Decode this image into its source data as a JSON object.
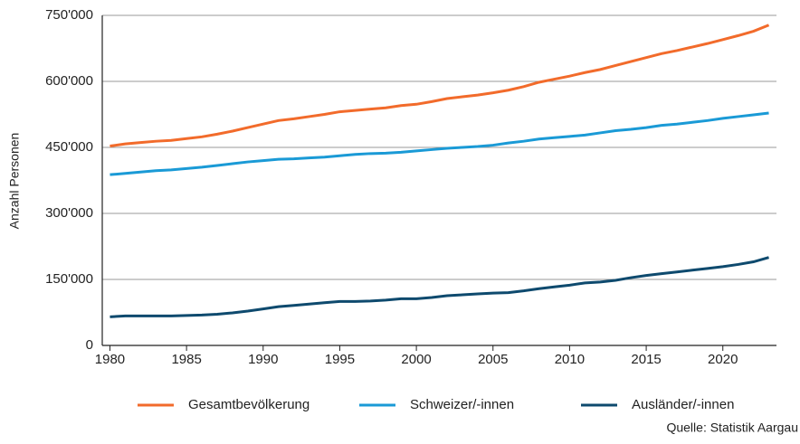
{
  "chart_data": {
    "type": "line",
    "y_label": "Anzahl Personen",
    "source": "Quelle: Statistik Aargau",
    "x": [
      1980,
      1981,
      1982,
      1983,
      1984,
      1985,
      1986,
      1987,
      1988,
      1989,
      1990,
      1991,
      1992,
      1993,
      1994,
      1995,
      1996,
      1997,
      1998,
      1999,
      2000,
      2001,
      2002,
      2003,
      2004,
      2005,
      2006,
      2007,
      2008,
      2009,
      2010,
      2011,
      2012,
      2013,
      2014,
      2015,
      2016,
      2017,
      2018,
      2019,
      2020,
      2021,
      2022,
      2023
    ],
    "series": [
      {
        "name": "Gesamtbevölkerung",
        "color": "#f26b2b",
        "values": [
          453000,
          458000,
          461000,
          464000,
          466000,
          470000,
          474000,
          480000,
          487000,
          495000,
          503000,
          511000,
          515000,
          520000,
          525000,
          531000,
          534000,
          537000,
          540000,
          545000,
          548000,
          554000,
          561000,
          565000,
          569000,
          574000,
          580000,
          588000,
          598000,
          605000,
          612000,
          620000,
          627000,
          636000,
          645000,
          654000,
          663000,
          670000,
          678000,
          686000,
          695000,
          704000,
          714000,
          728000
        ]
      },
      {
        "name": "Schweizer/-innen",
        "color": "#1a9ad6",
        "values": [
          388000,
          391000,
          394000,
          397000,
          399000,
          402000,
          405000,
          409000,
          413000,
          417000,
          420000,
          423000,
          424000,
          426000,
          428000,
          431000,
          434000,
          436000,
          437000,
          439000,
          442000,
          445000,
          448000,
          450000,
          452000,
          455000,
          460000,
          464000,
          469000,
          472000,
          475000,
          478000,
          483000,
          488000,
          491000,
          495000,
          500000,
          503000,
          507000,
          511000,
          516000,
          520000,
          524000,
          528000
        ]
      },
      {
        "name": "Ausländer/-innen",
        "color": "#0e4a6e",
        "values": [
          65000,
          67000,
          67000,
          67000,
          67000,
          68000,
          69000,
          71000,
          74000,
          78000,
          83000,
          88000,
          91000,
          94000,
          97000,
          100000,
          100000,
          101000,
          103000,
          106000,
          106000,
          109000,
          113000,
          115000,
          117000,
          119000,
          120000,
          124000,
          129000,
          133000,
          137000,
          142000,
          144000,
          148000,
          154000,
          159000,
          163000,
          167000,
          171000,
          175000,
          179000,
          184000,
          190000,
          200000
        ]
      }
    ],
    "xlim": [
      1979.5,
      2023.5
    ],
    "xticks": [
      1980,
      1985,
      1990,
      1995,
      2000,
      2005,
      2010,
      2015,
      2020
    ],
    "ylim": [
      0,
      750000
    ],
    "yticks": [
      0,
      {
        "value": 150000,
        "label": "150'000"
      },
      {
        "value": 300000,
        "label": "300'000"
      },
      {
        "value": 450000,
        "label": "450'000"
      },
      {
        "value": 600000,
        "label": "600'000"
      },
      {
        "value": 750000,
        "label": "750'000"
      }
    ],
    "grid": true
  }
}
